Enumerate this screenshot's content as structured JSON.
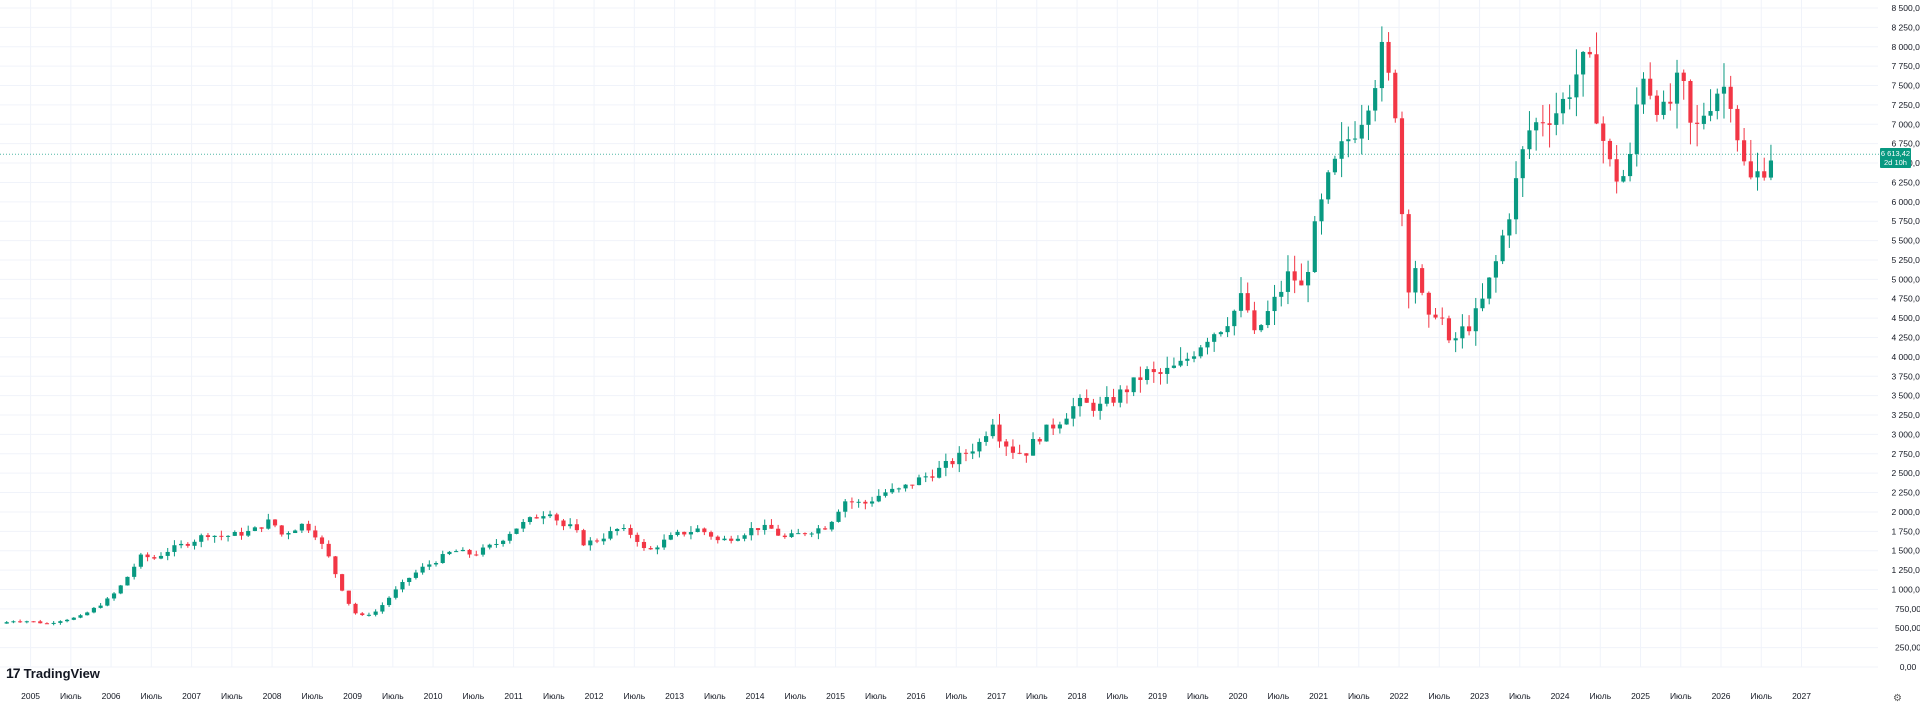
{
  "chart_data": {
    "type": "candlestick",
    "interval": "monthly",
    "y_axis": {
      "position": "right",
      "ticks": [
        "8 500,00",
        "8 250,00",
        "8 000,00",
        "7 750,00",
        "7 500,00",
        "7 250,00",
        "7 000,00",
        "6 750,00",
        "6 500,00",
        "6 250,00",
        "6 000,00",
        "5 750,00",
        "5 500,00",
        "5 250,00",
        "5 000,00",
        "4 750,00",
        "4 500,00",
        "4 250,00",
        "4 000,00",
        "3 750,00",
        "3 500,00",
        "3 250,00",
        "3 000,00",
        "2 750,00",
        "2 500,00",
        "2 250,00",
        "2 000,00",
        "1 750,00",
        "1 500,00",
        "1 250,00",
        "1 000,00",
        "750,00",
        "500,00",
        "250,00",
        "0,00"
      ],
      "ylim": [
        0,
        8500
      ]
    },
    "x_axis": {
      "ticks": [
        {
          "label": "2005",
          "t": 2005.0
        },
        {
          "label": "Июль",
          "t": 2005.5
        },
        {
          "label": "2006",
          "t": 2006.0
        },
        {
          "label": "Июль",
          "t": 2006.5
        },
        {
          "label": "2007",
          "t": 2007.0
        },
        {
          "label": "Июль",
          "t": 2007.5
        },
        {
          "label": "2008",
          "t": 2008.0
        },
        {
          "label": "Июль",
          "t": 2008.5
        },
        {
          "label": "2009",
          "t": 2009.0
        },
        {
          "label": "Июль",
          "t": 2009.5
        },
        {
          "label": "2010",
          "t": 2010.0
        },
        {
          "label": "Июль",
          "t": 2010.5
        },
        {
          "label": "2011",
          "t": 2011.0
        },
        {
          "label": "Июль",
          "t": 2011.5
        },
        {
          "label": "2012",
          "t": 2012.0
        },
        {
          "label": "Июль",
          "t": 2012.5
        },
        {
          "label": "2013",
          "t": 2013.0
        },
        {
          "label": "Июль",
          "t": 2013.5
        },
        {
          "label": "2014",
          "t": 2014.0
        },
        {
          "label": "Июль",
          "t": 2014.5
        },
        {
          "label": "2015",
          "t": 2015.0
        },
        {
          "label": "Июль",
          "t": 2015.5
        },
        {
          "label": "2016",
          "t": 2016.0
        },
        {
          "label": "Июль",
          "t": 2016.5
        },
        {
          "label": "2017",
          "t": 2017.0
        },
        {
          "label": "Июль",
          "t": 2017.5
        },
        {
          "label": "2018",
          "t": 2018.0
        },
        {
          "label": "Июль",
          "t": 2018.5
        },
        {
          "label": "2019",
          "t": 2019.0
        },
        {
          "label": "Июль",
          "t": 2019.5
        },
        {
          "label": "2020",
          "t": 2020.0
        },
        {
          "label": "Июль",
          "t": 2020.5
        },
        {
          "label": "2021",
          "t": 2021.0
        },
        {
          "label": "Июль",
          "t": 2021.5
        },
        {
          "label": "2022",
          "t": 2022.0
        },
        {
          "label": "Июль",
          "t": 2022.5
        },
        {
          "label": "2023",
          "t": 2023.0
        },
        {
          "label": "Июль",
          "t": 2023.5
        },
        {
          "label": "2024",
          "t": 2024.0
        },
        {
          "label": "Июль",
          "t": 2024.5
        },
        {
          "label": "2025",
          "t": 2025.0
        },
        {
          "label": "Июль",
          "t": 2025.5
        },
        {
          "label": "2026",
          "t": 2026.0
        },
        {
          "label": "Июль",
          "t": 2026.5
        },
        {
          "label": "2027",
          "t": 2027.0
        }
      ],
      "xlim": [
        2004.62,
        2027.95
      ]
    },
    "current_price": {
      "price": "6 613,42",
      "countdown": "2d 10h",
      "value": 6613.42
    },
    "grid": true,
    "colors": {
      "up": "#089981",
      "down": "#f23645",
      "grid": "#f0f3fa",
      "price_line": "#089981",
      "text": "#131722"
    },
    "anchors": [
      [
        2004.62,
        560
      ],
      [
        2004.8,
        600
      ],
      [
        2005.0,
        590
      ],
      [
        2005.2,
        560
      ],
      [
        2005.4,
        610
      ],
      [
        2005.6,
        640
      ],
      [
        2005.8,
        760
      ],
      [
        2006.0,
        900
      ],
      [
        2006.15,
        1080
      ],
      [
        2006.3,
        1320
      ],
      [
        2006.4,
        1460
      ],
      [
        2006.5,
        1380
      ],
      [
        2006.7,
        1500
      ],
      [
        2007.0,
        1620
      ],
      [
        2007.2,
        1720
      ],
      [
        2007.35,
        1680
      ],
      [
        2007.5,
        1700
      ],
      [
        2007.75,
        1750
      ],
      [
        2008.0,
        1900
      ],
      [
        2008.1,
        1700
      ],
      [
        2008.4,
        1850
      ],
      [
        2008.55,
        1700
      ],
      [
        2008.7,
        1420
      ],
      [
        2008.85,
        1050
      ],
      [
        2009.0,
        720
      ],
      [
        2009.1,
        650
      ],
      [
        2009.3,
        720
      ],
      [
        2009.5,
        950
      ],
      [
        2009.7,
        1150
      ],
      [
        2009.9,
        1300
      ],
      [
        2010.0,
        1350
      ],
      [
        2010.25,
        1500
      ],
      [
        2010.5,
        1450
      ],
      [
        2010.8,
        1600
      ],
      [
        2011.0,
        1780
      ],
      [
        2011.3,
        1950
      ],
      [
        2011.45,
        2020
      ],
      [
        2011.6,
        1820
      ],
      [
        2011.75,
        1800
      ],
      [
        2011.85,
        1600
      ],
      [
        2012.0,
        1620
      ],
      [
        2012.3,
        1780
      ],
      [
        2012.5,
        1700
      ],
      [
        2012.65,
        1470
      ],
      [
        2012.8,
        1580
      ],
      [
        2013.0,
        1700
      ],
      [
        2013.3,
        1780
      ],
      [
        2013.45,
        1700
      ],
      [
        2013.55,
        1620
      ],
      [
        2013.8,
        1700
      ],
      [
        2014.0,
        1800
      ],
      [
        2014.2,
        1780
      ],
      [
        2014.35,
        1660
      ],
      [
        2014.5,
        1700
      ],
      [
        2014.7,
        1760
      ],
      [
        2014.9,
        1820
      ],
      [
        2015.0,
        1980
      ],
      [
        2015.1,
        2150
      ],
      [
        2015.35,
        2100
      ],
      [
        2015.6,
        2250
      ],
      [
        2015.8,
        2280
      ],
      [
        2016.0,
        2400
      ],
      [
        2016.3,
        2550
      ],
      [
        2016.6,
        2750
      ],
      [
        2016.8,
        2900
      ],
      [
        2016.95,
        3200
      ],
      [
        2017.05,
        2950
      ],
      [
        2017.2,
        2800
      ],
      [
        2017.35,
        2750
      ],
      [
        2017.5,
        2950
      ],
      [
        2017.8,
        3200
      ],
      [
        2018.0,
        3400
      ],
      [
        2018.3,
        3350
      ],
      [
        2018.5,
        3500
      ],
      [
        2018.7,
        3650
      ],
      [
        2018.85,
        3800
      ],
      [
        2019.0,
        3750
      ],
      [
        2019.3,
        3900
      ],
      [
        2019.6,
        4250
      ],
      [
        2019.8,
        4400
      ],
      [
        2020.0,
        4650
      ],
      [
        2020.1,
        4900
      ],
      [
        2020.15,
        4150
      ],
      [
        2020.25,
        4350
      ],
      [
        2020.45,
        4700
      ],
      [
        2020.65,
        5100
      ],
      [
        2020.8,
        4850
      ],
      [
        2020.95,
        5600
      ],
      [
        2021.1,
        6200
      ],
      [
        2021.3,
        6700
      ],
      [
        2021.45,
        6950
      ],
      [
        2021.55,
        7150
      ],
      [
        2021.7,
        7600
      ],
      [
        2021.8,
        7950
      ],
      [
        2021.9,
        7400
      ],
      [
        2022.0,
        7050
      ],
      [
        2022.07,
        4800
      ],
      [
        2022.2,
        5200
      ],
      [
        2022.35,
        4400
      ],
      [
        2022.5,
        4700
      ],
      [
        2022.6,
        4100
      ],
      [
        2022.75,
        4300
      ],
      [
        2022.9,
        4450
      ],
      [
        2023.0,
        4600
      ],
      [
        2023.2,
        5200
      ],
      [
        2023.4,
        6000
      ],
      [
        2023.6,
        6900
      ],
      [
        2023.8,
        7100
      ],
      [
        2024.0,
        7200
      ],
      [
        2024.2,
        7650
      ],
      [
        2024.35,
        7850
      ],
      [
        2024.45,
        7200
      ],
      [
        2024.6,
        6500
      ],
      [
        2024.75,
        6250
      ],
      [
        2024.9,
        6600
      ],
      [
        2025.0,
        7800
      ],
      [
        2025.1,
        7500
      ],
      [
        2025.3,
        7100
      ],
      [
        2025.5,
        7600
      ],
      [
        2025.65,
        6800
      ],
      [
        2025.8,
        7200
      ],
      [
        2025.95,
        7450
      ],
      [
        2026.1,
        7500
      ],
      [
        2026.25,
        6600
      ],
      [
        2026.35,
        6250
      ],
      [
        2026.5,
        6400
      ],
      [
        2026.62,
        6613
      ]
    ]
  },
  "branding": {
    "logo_text": "TradingView",
    "logo_mark": "17"
  },
  "footer": {
    "settings_icon": "gear-icon"
  }
}
